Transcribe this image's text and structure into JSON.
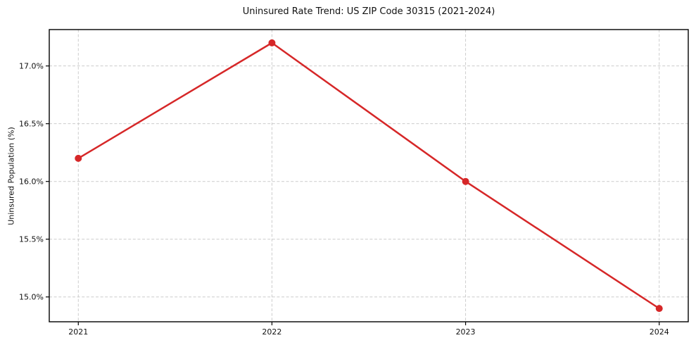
{
  "chart_data": {
    "type": "line",
    "title": "Uninsured Rate Trend: US ZIP Code 30315 (2021-2024)",
    "ylabel": "Uninsured Population (%)",
    "x": [
      2021,
      2022,
      2023,
      2024
    ],
    "series": [
      {
        "name": "uninsured-rate",
        "values": [
          16.2,
          17.2,
          16.0,
          14.9
        ],
        "color": "#d62728",
        "marker": "circle"
      }
    ],
    "xtick_labels": [
      "2021",
      "2022",
      "2023",
      "2024"
    ],
    "ytick_values": [
      15.0,
      15.5,
      16.0,
      16.5,
      17.0
    ],
    "ytick_labels": [
      "15.0%",
      "15.5%",
      "16.0%",
      "16.5%",
      "17.0%"
    ],
    "xlim": [
      2020.85,
      2024.15
    ],
    "ylim": [
      14.785,
      17.315
    ],
    "grid": {
      "visible": true,
      "style": "dashed",
      "color": "#cccccc"
    },
    "axis_color": "#000000",
    "tick_label_color": "#111111",
    "background": "#ffffff"
  }
}
